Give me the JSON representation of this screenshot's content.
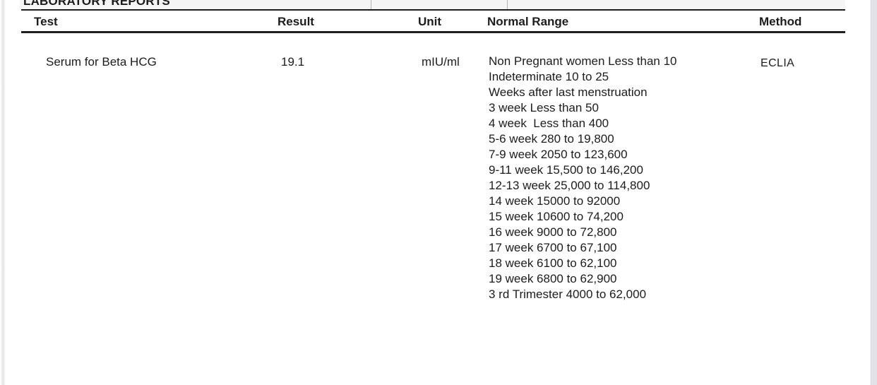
{
  "page": {
    "section_title": "LABORATORY REPORTS"
  },
  "table": {
    "columns": [
      "Test",
      "Result",
      "Unit",
      "Normal Range",
      "Method"
    ],
    "rows": [
      {
        "test": "Serum for Beta HCG",
        "result": "19.1",
        "unit": "mIU/ml",
        "normal_range_lines": [
          "Non Pregnant women Less than 10",
          "Indeterminate 10 to 25",
          "Weeks after last menstruation",
          "3 week Less than 50",
          "4 week  Less than 400",
          "5-6 week 280 to 19,800",
          "7-9 week 2050 to 123,600",
          "9-11 week 15,500 to 146,200",
          "12-13 week 25,000 to 114,800",
          "14 week 15000 to 92000",
          "15 week 10600 to 74,200",
          "16 week 9000 to 72,800",
          "17 week 6700 to 67,100",
          "18 week 6100 to 62,100",
          "19 week 6800 to 62,900",
          "3 rd Trimester 4000 to 62,000"
        ],
        "method": "ECLIA"
      }
    ]
  },
  "colors": {
    "page-bg": "#ffffff",
    "text": "#1c1c1c",
    "line": "#1f1f1f",
    "header-band": "#f5f5f6",
    "edge-strip": "#e1e1e7"
  }
}
